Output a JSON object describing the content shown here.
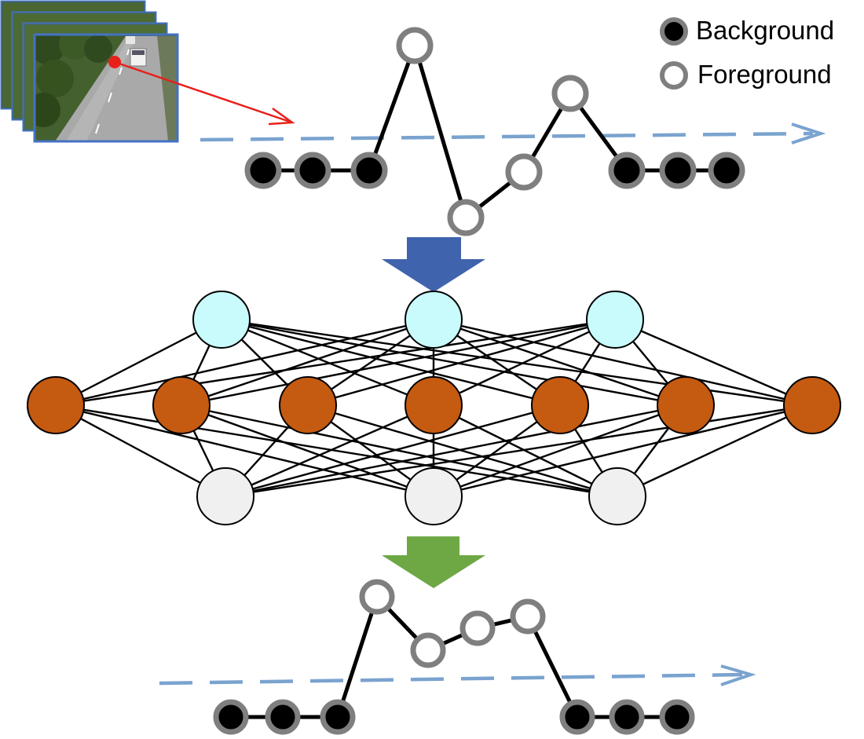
{
  "legend": {
    "background_label": "Background",
    "foreground_label": "Foreground"
  },
  "colors": {
    "background_node_fill": "#000000",
    "node_stroke": "#7f7f7f",
    "foreground_node_fill": "#ffffff",
    "timeline_dashed": "#7aa3cf",
    "pointer_red": "#e8201a",
    "down_arrow_blue": "#3f63ad",
    "down_arrow_green": "#6ea845",
    "input_node_fill": "#c9fbfc",
    "hidden_node_fill": "#c55a11",
    "output_node_fill": "#f0f0f0",
    "frame_border": "#4472c4"
  },
  "icons": {
    "video_frames": "video-frame-stack-icon"
  }
}
